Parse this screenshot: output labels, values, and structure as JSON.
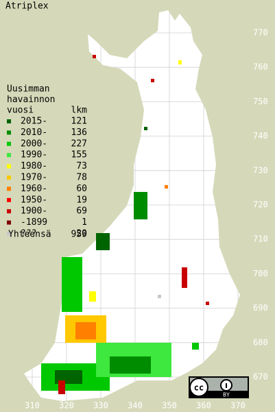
{
  "title": "Atriplex",
  "legend": {
    "header": [
      "Uusimman",
      "havainnon",
      "vuosi"
    ],
    "count_header": "lkm",
    "entries": [
      {
        "label": "2015-",
        "count": "121",
        "color": "#006400"
      },
      {
        "label": "2010-",
        "count": "136",
        "color": "#008c00"
      },
      {
        "label": "2000-",
        "count": "227",
        "color": "#00c800"
      },
      {
        "label": "1990-",
        "count": "155",
        "color": "#3ee83e"
      },
      {
        "label": "1980-",
        "count": "73",
        "color": "#ffff00"
      },
      {
        "label": "1970-",
        "count": "78",
        "color": "#ffc800"
      },
      {
        "label": "1960-",
        "count": "60",
        "color": "#ff7f00"
      },
      {
        "label": "1950-",
        "count": "19",
        "color": "#ff0000"
      },
      {
        "label": "1900-",
        "count": "69",
        "color": "#c80000"
      },
      {
        "label": "-1899",
        "count": "1",
        "color": "#7f0000"
      },
      {
        "label": "???",
        "count": "20",
        "color": "#c8c8c8"
      }
    ],
    "total_label": "Yhteensä",
    "total": "959"
  },
  "y_grid_labels": [
    "770",
    "760",
    "750",
    "740",
    "730",
    "720",
    "710",
    "700",
    "690",
    "680",
    "670"
  ],
  "x_grid_labels": [
    "310",
    "320",
    "330",
    "340",
    "350",
    "360",
    "370"
  ],
  "license": {
    "icon": "cc",
    "badge": "BY"
  }
}
